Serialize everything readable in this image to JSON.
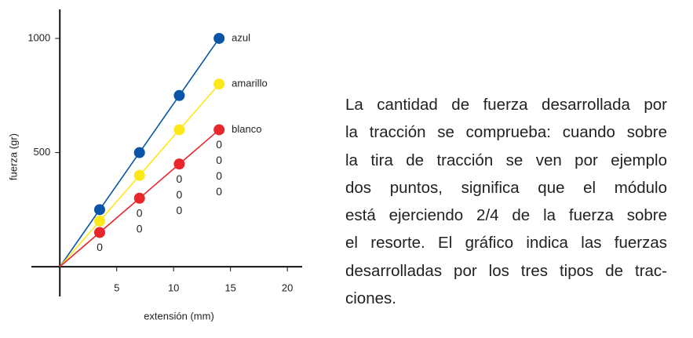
{
  "chart_data": {
    "type": "line",
    "xlabel": "extensión (mm)",
    "ylabel": "fuerza (gr)",
    "x": [
      3.5,
      7,
      10.5,
      14
    ],
    "series": [
      {
        "name": "azul",
        "color": "#0a55a8",
        "values": [
          250,
          500,
          750,
          1000
        ]
      },
      {
        "name": "amarillo",
        "color": "#fde81a",
        "values": [
          200,
          400,
          600,
          800
        ]
      },
      {
        "name": "blanco",
        "color": "#e8262c",
        "values": [
          150,
          300,
          450,
          600
        ]
      }
    ],
    "annotations": [
      [
        "0"
      ],
      [
        "0",
        "0"
      ],
      [
        "0",
        "0",
        "0"
      ],
      [
        "0",
        "0",
        "0",
        "0"
      ]
    ],
    "xlim": [
      -2.5,
      21.3
    ],
    "ylim": [
      -130,
      1127
    ],
    "xticks": [
      5,
      10,
      15,
      20
    ],
    "yticks": [
      500,
      1000
    ],
    "grid": false
  },
  "text": {
    "lines": [
      "La cantidad de fuerza desarrollada por",
      "la tracción se comprueba: cuando sobre",
      "la tira de tracción se ven por ejemplo",
      "dos puntos, significa que el módulo",
      "está ejerciendo 2/4 de la fuerza sobre",
      "el resorte. El gráfico indica las fuerzas",
      "desarrolladas por los tres tipos de trac-",
      "ciones."
    ]
  }
}
